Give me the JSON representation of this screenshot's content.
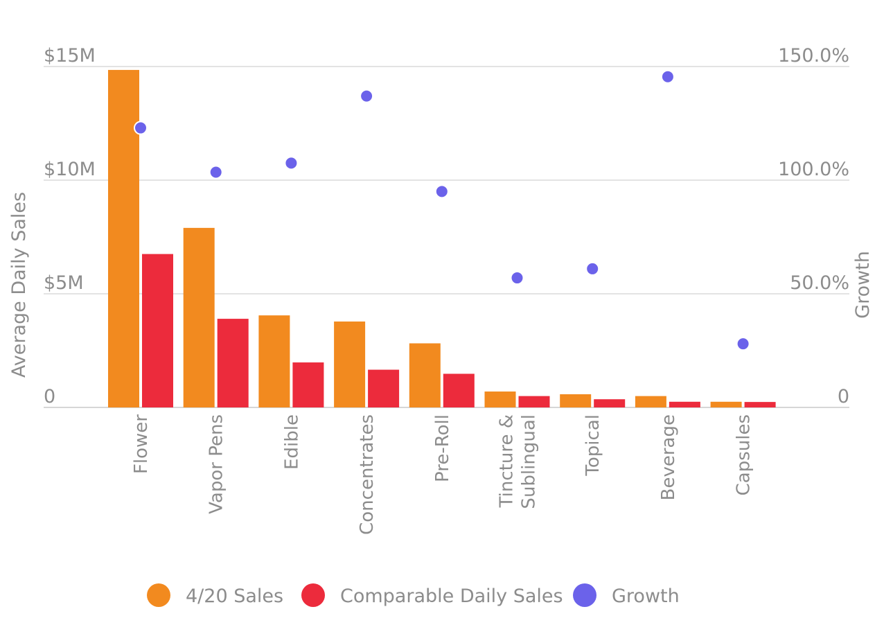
{
  "chart_data": {
    "type": "bar",
    "title": "",
    "categories": [
      "Flower",
      "Vapor Pens",
      "Edible",
      "Concentrates",
      "Pre-Roll",
      "Tincture & Sublingual",
      "Topical",
      "Beverage",
      "Capsules"
    ],
    "category_lines": [
      [
        "Flower"
      ],
      [
        "Vapor Pens"
      ],
      [
        "Edible"
      ],
      [
        "Concentrates"
      ],
      [
        "Pre-Roll"
      ],
      [
        "Tincture &",
        "Sublingual"
      ],
      [
        "Topical"
      ],
      [
        "Beverage"
      ],
      [
        "Capsules"
      ]
    ],
    "series": [
      {
        "name": "4/20 Sales",
        "type": "bar",
        "axis": "left",
        "color": "#f28a1f",
        "values": [
          14.85,
          7.9,
          4.05,
          3.78,
          2.82,
          0.7,
          0.58,
          0.5,
          0.25
        ]
      },
      {
        "name": "Comparable Daily Sales",
        "type": "bar",
        "axis": "left",
        "color": "#ec2b3c",
        "values": [
          6.75,
          3.9,
          1.98,
          1.66,
          1.48,
          0.5,
          0.36,
          0.25,
          0.24
        ]
      },
      {
        "name": "Growth",
        "type": "scatter",
        "axis": "right",
        "color": "#6b62ea",
        "values": [
          123.0,
          103.5,
          107.5,
          137.0,
          95.0,
          57.0,
          61.0,
          145.5,
          28.0
        ]
      }
    ],
    "y_left": {
      "label": "Average Daily Sales",
      "ylim": [
        0,
        15
      ],
      "ticks": [
        0,
        5,
        10,
        15
      ],
      "tick_labels": [
        "0",
        "$5M",
        "$10M",
        "$15M"
      ]
    },
    "y_right": {
      "label": "Growth",
      "ylim": [
        0,
        150
      ],
      "ticks": [
        0,
        50,
        100,
        150
      ],
      "tick_labels": [
        "0",
        "50.0%",
        "100.0%",
        "150.0%"
      ]
    },
    "legend": {
      "position": "bottom-center",
      "items": [
        "4/20 Sales",
        "Comparable Daily Sales",
        "Growth"
      ]
    },
    "grid": true
  }
}
